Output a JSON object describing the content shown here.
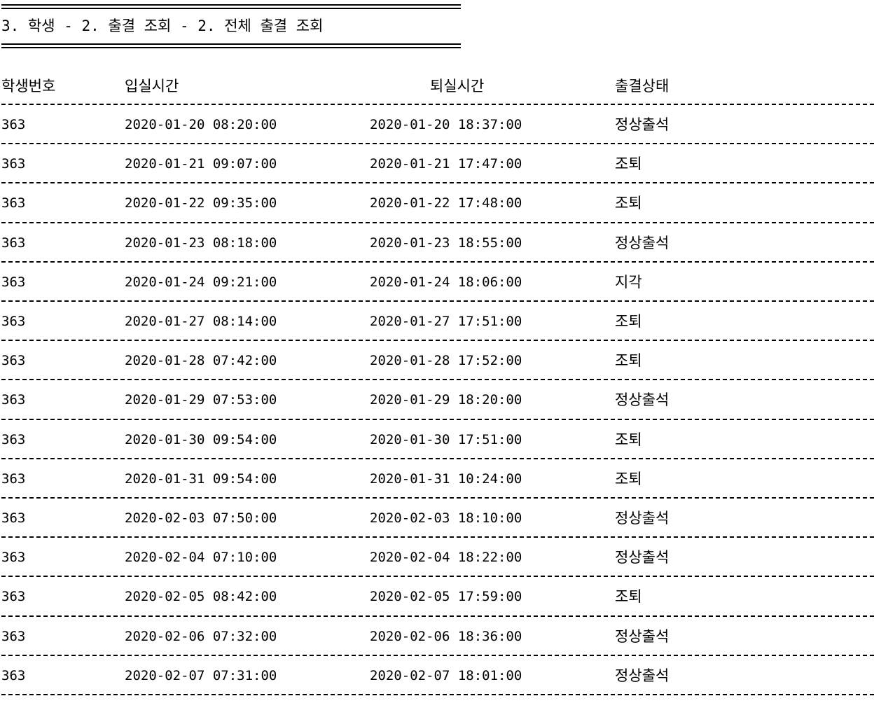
{
  "title": "3. 학생 - 2. 출결 조회 - 2. 전체 출결 조회",
  "columns": {
    "student_no": "학생번호",
    "check_in": "입실시간",
    "check_out": "퇴실시간",
    "status": "출결상태"
  },
  "rows": [
    {
      "student_no": "363",
      "check_in": "2020-01-20 08:20:00",
      "check_out": "2020-01-20 18:37:00",
      "status": "정상출석"
    },
    {
      "student_no": "363",
      "check_in": "2020-01-21 09:07:00",
      "check_out": "2020-01-21 17:47:00",
      "status": "조퇴"
    },
    {
      "student_no": "363",
      "check_in": "2020-01-22 09:35:00",
      "check_out": "2020-01-22 17:48:00",
      "status": "조퇴"
    },
    {
      "student_no": "363",
      "check_in": "2020-01-23 08:18:00",
      "check_out": "2020-01-23 18:55:00",
      "status": "정상출석"
    },
    {
      "student_no": "363",
      "check_in": "2020-01-24 09:21:00",
      "check_out": "2020-01-24 18:06:00",
      "status": "지각"
    },
    {
      "student_no": "363",
      "check_in": "2020-01-27 08:14:00",
      "check_out": "2020-01-27 17:51:00",
      "status": "조퇴"
    },
    {
      "student_no": "363",
      "check_in": "2020-01-28 07:42:00",
      "check_out": "2020-01-28 17:52:00",
      "status": "조퇴"
    },
    {
      "student_no": "363",
      "check_in": "2020-01-29 07:53:00",
      "check_out": "2020-01-29 18:20:00",
      "status": "정상출석"
    },
    {
      "student_no": "363",
      "check_in": "2020-01-30 09:54:00",
      "check_out": "2020-01-30 17:51:00",
      "status": "조퇴"
    },
    {
      "student_no": "363",
      "check_in": "2020-01-31 09:54:00",
      "check_out": "2020-01-31 10:24:00",
      "status": "조퇴"
    },
    {
      "student_no": "363",
      "check_in": "2020-02-03 07:50:00",
      "check_out": "2020-02-03 18:10:00",
      "status": "정상출석"
    },
    {
      "student_no": "363",
      "check_in": "2020-02-04 07:10:00",
      "check_out": "2020-02-04 18:22:00",
      "status": "정상출석"
    },
    {
      "student_no": "363",
      "check_in": "2020-02-05 08:42:00",
      "check_out": "2020-02-05 17:59:00",
      "status": "조퇴"
    },
    {
      "student_no": "363",
      "check_in": "2020-02-06 07:32:00",
      "check_out": "2020-02-06 18:36:00",
      "status": "정상출석"
    },
    {
      "student_no": "363",
      "check_in": "2020-02-07 07:31:00",
      "check_out": "2020-02-07 18:01:00",
      "status": "정상출석"
    }
  ]
}
